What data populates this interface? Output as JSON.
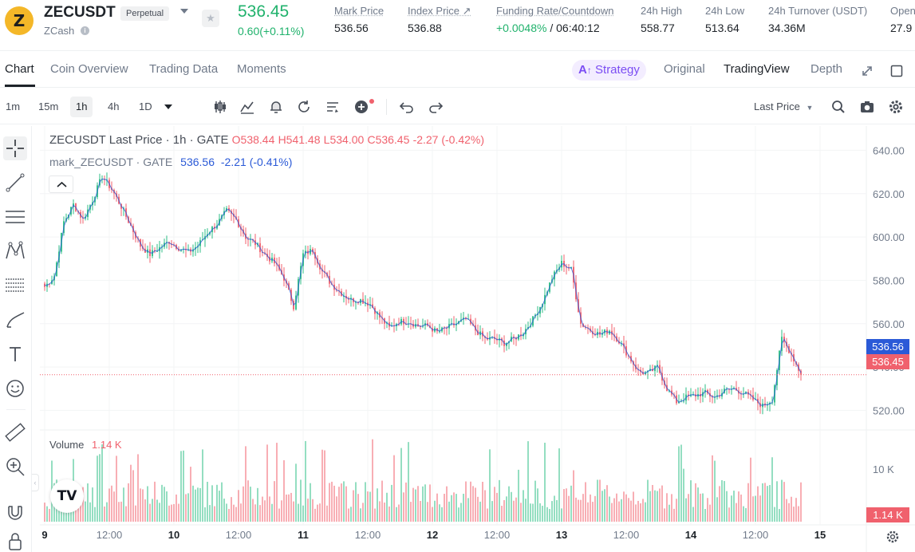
{
  "ticker": {
    "symbol": "ZECUSDT",
    "badge": "Perpetual",
    "coin_letter": "Z",
    "coin_name": "ZCash",
    "last_price": "536.45",
    "change": "0.60(+0.11%)",
    "stats": [
      {
        "label": "Mark Price",
        "value": "536.56"
      },
      {
        "label": "Index Price ↗",
        "value": "536.88"
      },
      {
        "label": "Funding Rate/Countdown",
        "value_green": "+0.0048%",
        "value": " / 06:40:12"
      },
      {
        "label": "24h High",
        "value": "558.77"
      },
      {
        "label": "24h Low",
        "value": "513.64"
      },
      {
        "label": "24h Turnover (USDT)",
        "value": "34.36M"
      },
      {
        "label": "Open",
        "value": "27.9"
      }
    ]
  },
  "tabs": [
    "Chart",
    "Coin Overview",
    "Trading Data",
    "Moments"
  ],
  "strategy_label": "Strategy",
  "views": [
    "Original",
    "TradingView",
    "Depth"
  ],
  "intervals": [
    "1m",
    "15m",
    "1h",
    "4h",
    "1D"
  ],
  "price_source": "Last Price",
  "legend": {
    "title": "ZECUSDT Last Price · 1h · GATE",
    "o": "O538.44",
    "h": "H541.48",
    "l": "L534.00",
    "c": "C536.45",
    "chg": "-2.27 (-0.42%)",
    "mark_name": "mark_ZECUSDT · GATE",
    "mark_val": "536.56",
    "mark_chg": "-2.21 (-0.41%)"
  },
  "volume": {
    "label": "Volume",
    "value": "1.14 K",
    "axis_label": "10 K",
    "tag": "1.14 K"
  },
  "price_tags": {
    "mark": "536.56",
    "last": "536.45"
  },
  "colors": {
    "up": "#2ebd85",
    "down": "#f0616d",
    "mark_tag": "#2b5ad7",
    "last_tag": "#f0616d"
  },
  "chart_data": {
    "type": "candlestick",
    "interval": "1h",
    "y_ticks": [
      "640.00",
      "620.00",
      "600.00",
      "580.00",
      "560.00",
      "540.00",
      "520.00"
    ],
    "x_ticks": [
      "9",
      "12:00",
      "10",
      "12:00",
      "11",
      "12:00",
      "12",
      "12:00",
      "13",
      "12:00",
      "14",
      "12:00",
      "15"
    ],
    "ylim": [
      515,
      642
    ],
    "close_path": [
      {
        "x": 0,
        "y": 577
      },
      {
        "x": 4,
        "y": 582
      },
      {
        "x": 8,
        "y": 607
      },
      {
        "x": 12,
        "y": 615
      },
      {
        "x": 16,
        "y": 608
      },
      {
        "x": 20,
        "y": 617
      },
      {
        "x": 24,
        "y": 628
      },
      {
        "x": 28,
        "y": 622
      },
      {
        "x": 32,
        "y": 614
      },
      {
        "x": 36,
        "y": 605
      },
      {
        "x": 40,
        "y": 596
      },
      {
        "x": 44,
        "y": 592
      },
      {
        "x": 48,
        "y": 595
      },
      {
        "x": 52,
        "y": 598
      },
      {
        "x": 56,
        "y": 595
      },
      {
        "x": 60,
        "y": 593
      },
      {
        "x": 64,
        "y": 596
      },
      {
        "x": 68,
        "y": 602
      },
      {
        "x": 72,
        "y": 606
      },
      {
        "x": 76,
        "y": 612
      },
      {
        "x": 80,
        "y": 608
      },
      {
        "x": 84,
        "y": 600
      },
      {
        "x": 88,
        "y": 597
      },
      {
        "x": 92,
        "y": 592
      },
      {
        "x": 96,
        "y": 588
      },
      {
        "x": 100,
        "y": 581
      },
      {
        "x": 104,
        "y": 568
      },
      {
        "x": 108,
        "y": 592
      },
      {
        "x": 112,
        "y": 594
      },
      {
        "x": 116,
        "y": 584
      },
      {
        "x": 120,
        "y": 578
      },
      {
        "x": 124,
        "y": 574
      },
      {
        "x": 128,
        "y": 571
      },
      {
        "x": 132,
        "y": 571
      },
      {
        "x": 136,
        "y": 569
      },
      {
        "x": 140,
        "y": 563
      },
      {
        "x": 144,
        "y": 558
      },
      {
        "x": 148,
        "y": 561
      },
      {
        "x": 152,
        "y": 561
      },
      {
        "x": 156,
        "y": 559
      },
      {
        "x": 160,
        "y": 559
      },
      {
        "x": 164,
        "y": 556
      },
      {
        "x": 168,
        "y": 558
      },
      {
        "x": 172,
        "y": 560
      },
      {
        "x": 176,
        "y": 562
      },
      {
        "x": 180,
        "y": 557
      },
      {
        "x": 184,
        "y": 553
      },
      {
        "x": 188,
        "y": 553
      },
      {
        "x": 192,
        "y": 551
      },
      {
        "x": 196,
        "y": 553
      },
      {
        "x": 200,
        "y": 556
      },
      {
        "x": 204,
        "y": 562
      },
      {
        "x": 208,
        "y": 570
      },
      {
        "x": 212,
        "y": 581
      },
      {
        "x": 216,
        "y": 588
      },
      {
        "x": 220,
        "y": 585
      },
      {
        "x": 224,
        "y": 560
      },
      {
        "x": 228,
        "y": 557
      },
      {
        "x": 232,
        "y": 555
      },
      {
        "x": 236,
        "y": 557
      },
      {
        "x": 240,
        "y": 552
      },
      {
        "x": 244,
        "y": 545
      },
      {
        "x": 248,
        "y": 538
      },
      {
        "x": 252,
        "y": 537
      },
      {
        "x": 256,
        "y": 540
      },
      {
        "x": 260,
        "y": 530
      },
      {
        "x": 264,
        "y": 524
      },
      {
        "x": 268,
        "y": 526
      },
      {
        "x": 272,
        "y": 527
      },
      {
        "x": 276,
        "y": 528
      },
      {
        "x": 280,
        "y": 526
      },
      {
        "x": 284,
        "y": 529
      },
      {
        "x": 288,
        "y": 530
      },
      {
        "x": 292,
        "y": 528
      },
      {
        "x": 296,
        "y": 525
      },
      {
        "x": 300,
        "y": 522
      },
      {
        "x": 304,
        "y": 525
      },
      {
        "x": 308,
        "y": 553
      },
      {
        "x": 312,
        "y": 546
      },
      {
        "x": 316,
        "y": 536.45
      }
    ],
    "volume_axis": [
      "10 K"
    ],
    "volume_last": "1.14 K"
  }
}
